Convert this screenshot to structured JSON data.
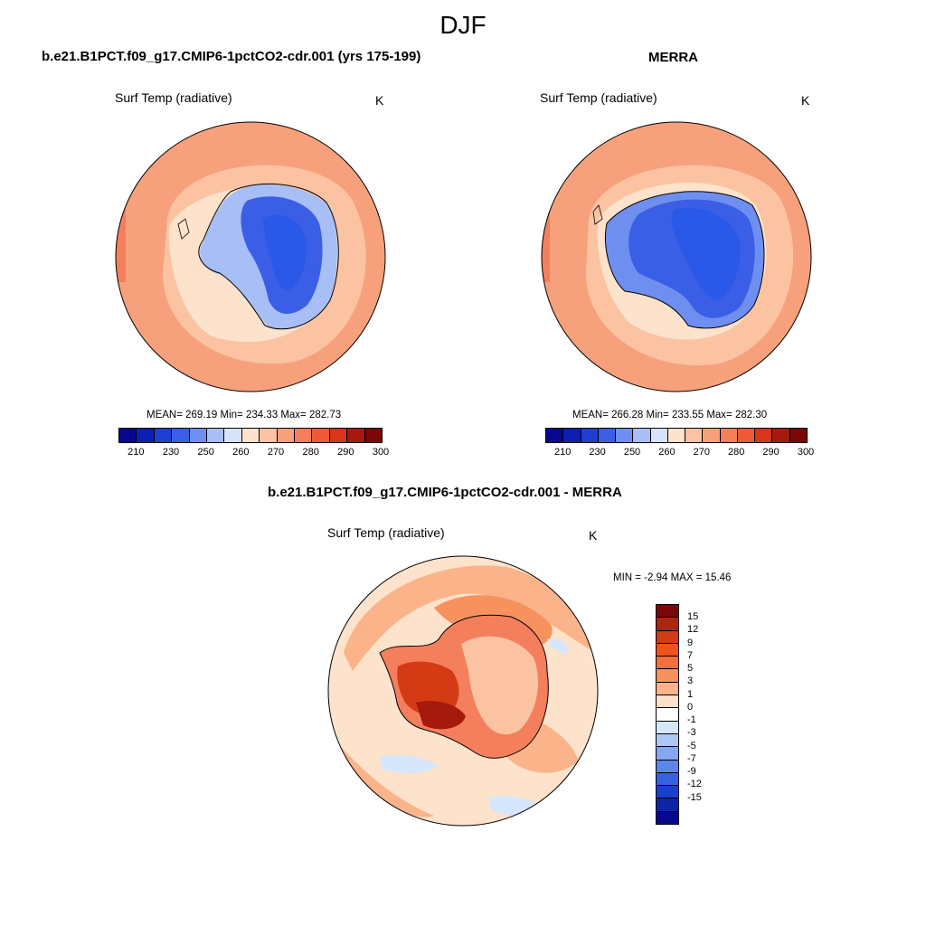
{
  "figure": {
    "season": "DJF"
  },
  "panels": {
    "model": {
      "title": "b.e21.B1PCT.f09_g17.CMIP6-1pctCO2-cdr.001 (yrs 175-199)",
      "variable": "Surf Temp (radiative)",
      "units": "K",
      "stats": "MEAN= 269.19  Min= 234.33  Max= 282.73"
    },
    "obs": {
      "title": "MERRA",
      "variable": "Surf Temp (radiative)",
      "units": "K",
      "stats": "MEAN= 266.28  Min= 233.55  Max= 282.30"
    },
    "diff": {
      "title": "b.e21.B1PCT.f09_g17.CMIP6-1pctCO2-cdr.001 - MERRA",
      "variable": "Surf Temp (radiative)",
      "units": "K",
      "stats": "MIN =  -2.94 MAX =  15.46"
    }
  },
  "abs_colorbar": {
    "colors": [
      "#08088f",
      "#0d1fb0",
      "#1f3fd1",
      "#3a5fe6",
      "#6f8ff0",
      "#a7bef6",
      "#d6e3fb",
      "#fde2cc",
      "#fbc3a2",
      "#f7a07c",
      "#f47f5c",
      "#ef5a36",
      "#d6361a",
      "#a51a0c",
      "#7a0606"
    ],
    "tick_labels": [
      "210",
      "230",
      "250",
      "260",
      "270",
      "280",
      "290",
      "300"
    ]
  },
  "diff_colorbar": {
    "colors_top_to_bottom": [
      "#7a0606",
      "#b0240f",
      "#d43b14",
      "#f0521e",
      "#f46f3d",
      "#f7925e",
      "#fbb48a",
      "#fde0c8",
      "#ffffff",
      "#d6e6fb",
      "#aec7f5",
      "#86a8f0",
      "#5c86ea",
      "#3563df",
      "#1940cc",
      "#0c24a8",
      "#08088f"
    ],
    "tick_labels": [
      "15",
      "12",
      "9",
      "7",
      "5",
      "3",
      "1",
      "0",
      "-1",
      "-3",
      "-5",
      "-7",
      "-9",
      "-12",
      "-15"
    ]
  },
  "colors": {
    "ocean_model": "#fbbf9b",
    "ocean_obs": "#fbbf9b",
    "ocean_diff": "#fde2cc",
    "land_cold": "#2a58e8"
  }
}
